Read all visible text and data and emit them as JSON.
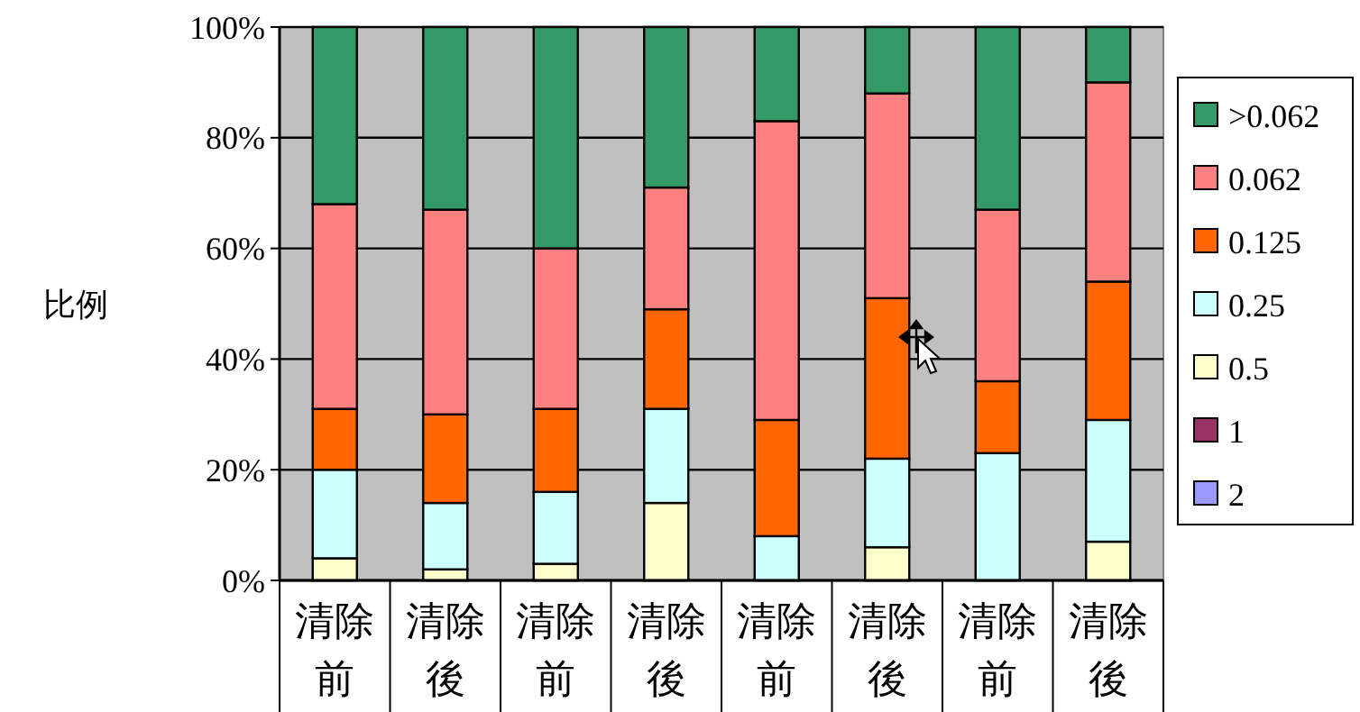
{
  "chart_data": {
    "type": "bar",
    "stacked": true,
    "ylabel": "比例",
    "categories": [
      "清除前",
      "清除後",
      "清除前",
      "清除後",
      "清除前",
      "清除後",
      "清除前",
      "清除後"
    ],
    "series": [
      {
        "name": "2",
        "color": "#9999ff",
        "values": [
          0,
          0,
          0,
          0,
          0,
          0,
          0,
          0
        ]
      },
      {
        "name": "1",
        "color": "#993366",
        "values": [
          0,
          0,
          0,
          0,
          0,
          0,
          0,
          0
        ]
      },
      {
        "name": "0.5",
        "color": "#ffffcc",
        "values": [
          4,
          2,
          3,
          14,
          0,
          6,
          0,
          7
        ]
      },
      {
        "name": "0.25",
        "color": "#ccffff",
        "values": [
          16,
          12,
          13,
          17,
          8,
          16,
          23,
          22
        ]
      },
      {
        "name": "0.125",
        "color": "#ff6600",
        "values": [
          11,
          16,
          15,
          18,
          21,
          29,
          13,
          25
        ]
      },
      {
        "name": "0.062",
        "color": "#ff8080",
        "values": [
          37,
          37,
          29,
          22,
          54,
          37,
          31,
          36
        ]
      },
      {
        "name": ">0.062",
        "color": "#339966",
        "values": [
          32,
          33,
          40,
          29,
          17,
          12,
          33,
          10
        ]
      }
    ],
    "ylim": [
      0,
      100
    ],
    "yticks": [
      {
        "value": 0,
        "label": "0%"
      },
      {
        "value": 20,
        "label": "20%"
      },
      {
        "value": 40,
        "label": "40%"
      },
      {
        "value": 60,
        "label": "60%"
      },
      {
        "value": 80,
        "label": "80%"
      },
      {
        "value": 100,
        "label": "100%"
      }
    ],
    "grid": "y",
    "legend": "right"
  }
}
